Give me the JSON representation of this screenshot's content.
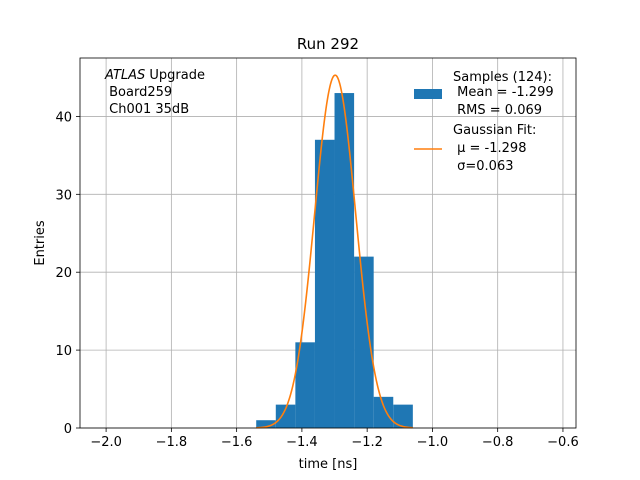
{
  "chart_data": {
    "type": "bar",
    "title": "Run 292",
    "xlabel": "time [ns]",
    "ylabel": "Entries",
    "xlim": [
      -2.08,
      -0.56
    ],
    "ylim": [
      0,
      47.5
    ],
    "grid": true,
    "xticks": [
      -2.0,
      -1.8,
      -1.6,
      -1.4,
      -1.2,
      -1.0,
      -0.8,
      -0.6
    ],
    "xtick_labels": [
      "−2.0",
      "−1.8",
      "−1.6",
      "−1.4",
      "−1.2",
      "−1.0",
      "−0.8",
      "−0.6"
    ],
    "yticks": [
      0,
      10,
      20,
      30,
      40
    ],
    "ytick_labels": [
      "0",
      "10",
      "20",
      "30",
      "40"
    ],
    "histogram": {
      "color": "#1f77b4",
      "bin_edges": [
        -1.54,
        -1.48,
        -1.42,
        -1.36,
        -1.3,
        -1.24,
        -1.18,
        -1.12,
        -1.06
      ],
      "counts": [
        1,
        3,
        11,
        37,
        43,
        22,
        4,
        3
      ]
    },
    "gaussian_fit": {
      "color": "#ff7f0e",
      "mu": -1.298,
      "sigma": 0.063,
      "amplitude": 45.3,
      "x_range": [
        -1.54,
        -1.06
      ]
    },
    "legend": {
      "placement": "top-right",
      "entries": [
        {
          "kind": "bar",
          "lines": [
            "Samples (124):",
            " Mean = -1.299",
            " RMS = 0.069"
          ]
        },
        {
          "kind": "line",
          "lines": [
            "Gaussian Fit:",
            " μ = -1.298",
            " σ=0.063"
          ]
        }
      ]
    },
    "annotation": {
      "italic": "ATLAS",
      "rest": " Upgrade",
      "lines": [
        " Board259",
        " Ch001 35dB"
      ]
    }
  }
}
